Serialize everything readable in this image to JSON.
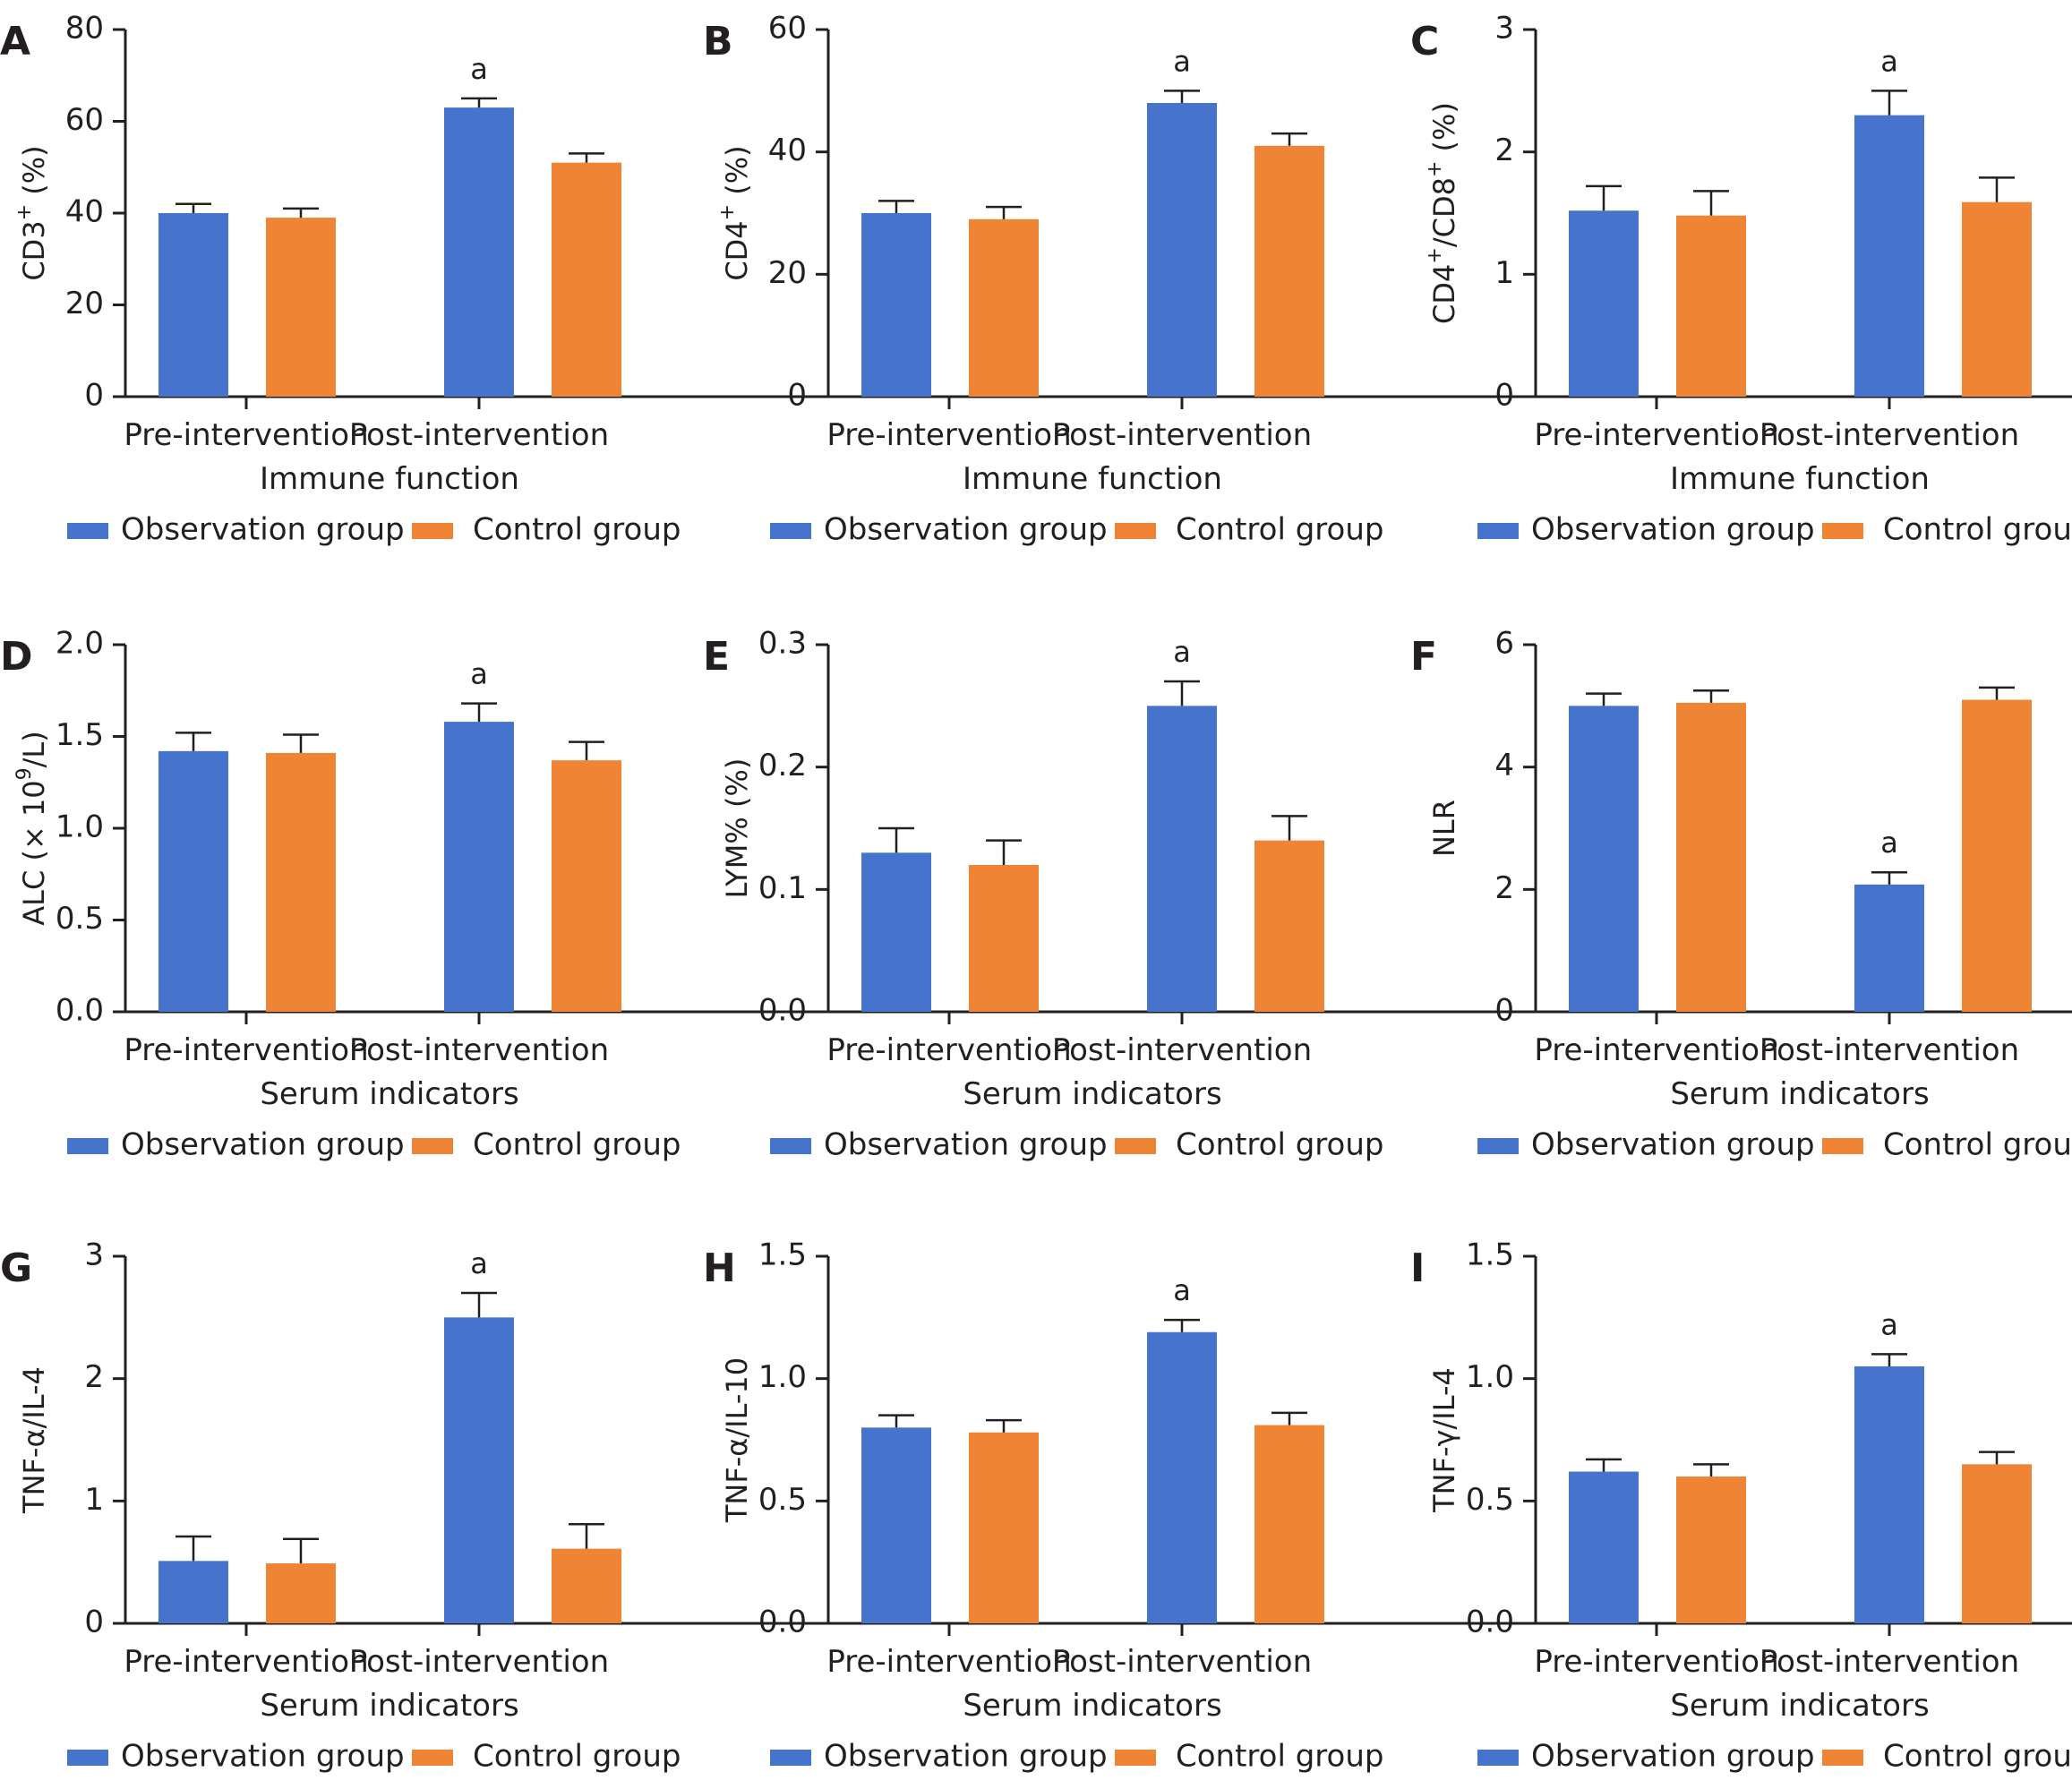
{
  "colors": {
    "observation": "#4674cc",
    "control": "#ee8434",
    "axis": "#231f20"
  },
  "legend": {
    "observation": "Observation group",
    "control": "Control group"
  },
  "chart_data": [
    {
      "panel": "A",
      "type": "bar",
      "title": "",
      "xlabel": "Immune function",
      "ylabel": {
        "pre": "CD3",
        "sup": "+",
        "post": " (%)"
      },
      "ylim": [
        0,
        80
      ],
      "yticks": [
        0,
        20,
        40,
        60,
        80
      ],
      "ytick_labels": [
        "0",
        "20",
        "40",
        "60",
        "80"
      ],
      "categories": [
        "Pre-intervention",
        "Post-intervention"
      ],
      "series": [
        {
          "name": "Observation group",
          "values": [
            40,
            63
          ],
          "errors": [
            2,
            2
          ]
        },
        {
          "name": "Control group",
          "values": [
            39,
            51
          ],
          "errors": [
            2,
            2
          ]
        }
      ],
      "annotations": [
        {
          "series": 0,
          "category": 1,
          "text": "a"
        }
      ]
    },
    {
      "panel": "B",
      "type": "bar",
      "title": "",
      "xlabel": "Immune function",
      "ylabel": {
        "pre": "CD4",
        "sup": "+",
        "post": " (%)"
      },
      "ylim": [
        0,
        60
      ],
      "yticks": [
        0,
        20,
        40,
        60
      ],
      "ytick_labels": [
        "0",
        "20",
        "40",
        "60"
      ],
      "categories": [
        "Pre-intervention",
        "Post-intervention"
      ],
      "series": [
        {
          "name": "Observation group",
          "values": [
            30,
            48
          ],
          "errors": [
            2,
            2
          ]
        },
        {
          "name": "Control group",
          "values": [
            29,
            41
          ],
          "errors": [
            2,
            2
          ]
        }
      ],
      "annotations": [
        {
          "series": 0,
          "category": 1,
          "text": "a"
        }
      ]
    },
    {
      "panel": "C",
      "type": "bar",
      "title": "",
      "xlabel": "Immune function",
      "ylabel": {
        "pre": "CD4",
        "sup": "+",
        "mid": "/CD8",
        "sup2": "+",
        "post": " (%)"
      },
      "ylim": [
        0,
        3
      ],
      "yticks": [
        0,
        1,
        2,
        3
      ],
      "ytick_labels": [
        "0",
        "1",
        "2",
        "3"
      ],
      "categories": [
        "Pre-intervention",
        "Post-intervention"
      ],
      "series": [
        {
          "name": "Observation group",
          "values": [
            1.52,
            2.3
          ],
          "errors": [
            0.2,
            0.2
          ]
        },
        {
          "name": "Control group",
          "values": [
            1.48,
            1.59
          ],
          "errors": [
            0.2,
            0.2
          ]
        }
      ],
      "annotations": [
        {
          "series": 0,
          "category": 1,
          "text": "a"
        }
      ]
    },
    {
      "panel": "D",
      "type": "bar",
      "title": "",
      "xlabel": "Serum indicators",
      "ylabel": {
        "pre": "ALC (× 10",
        "sup": "9",
        "post": "/L)"
      },
      "ylim": [
        0,
        2.0
      ],
      "yticks": [
        0,
        0.5,
        1.0,
        1.5,
        2.0
      ],
      "ytick_labels": [
        "0.0",
        "0.5",
        "1.0",
        "1.5",
        "2.0"
      ],
      "categories": [
        "Pre-intervention",
        "Post-intervention"
      ],
      "series": [
        {
          "name": "Observation group",
          "values": [
            1.42,
            1.58
          ],
          "errors": [
            0.1,
            0.1
          ]
        },
        {
          "name": "Control group",
          "values": [
            1.41,
            1.37
          ],
          "errors": [
            0.1,
            0.1
          ]
        }
      ],
      "annotations": [
        {
          "series": 0,
          "category": 1,
          "text": "a"
        }
      ]
    },
    {
      "panel": "E",
      "type": "bar",
      "title": "",
      "xlabel": "Serum indicators",
      "ylabel": {
        "pre": "LYM% (%)"
      },
      "ylim": [
        0,
        0.3
      ],
      "yticks": [
        0,
        0.1,
        0.2,
        0.3
      ],
      "ytick_labels": [
        "0.0",
        "0.1",
        "0.2",
        "0.3"
      ],
      "categories": [
        "Pre-intervention",
        "Post-intervention"
      ],
      "series": [
        {
          "name": "Observation group",
          "values": [
            0.13,
            0.25
          ],
          "errors": [
            0.02,
            0.02
          ]
        },
        {
          "name": "Control group",
          "values": [
            0.12,
            0.14
          ],
          "errors": [
            0.02,
            0.02
          ]
        }
      ],
      "annotations": [
        {
          "series": 0,
          "category": 1,
          "text": "a"
        }
      ]
    },
    {
      "panel": "F",
      "type": "bar",
      "title": "",
      "xlabel": "Serum indicators",
      "ylabel": {
        "pre": "NLR"
      },
      "ylim": [
        0,
        6
      ],
      "yticks": [
        0,
        2,
        4,
        6
      ],
      "ytick_labels": [
        "0",
        "2",
        "4",
        "6"
      ],
      "categories": [
        "Pre-intervention",
        "Post-intervention"
      ],
      "series": [
        {
          "name": "Observation group",
          "values": [
            5.0,
            2.08
          ],
          "errors": [
            0.2,
            0.2
          ]
        },
        {
          "name": "Control group",
          "values": [
            5.05,
            5.1
          ],
          "errors": [
            0.2,
            0.2
          ]
        }
      ],
      "annotations": [
        {
          "series": 0,
          "category": 1,
          "text": "a"
        }
      ]
    },
    {
      "panel": "G",
      "type": "bar",
      "title": "",
      "xlabel": "Serum indicators",
      "ylabel": {
        "pre": "TNF-α/IL-4"
      },
      "ylim": [
        0,
        3
      ],
      "yticks": [
        0,
        1,
        2,
        3
      ],
      "ytick_labels": [
        "0",
        "1",
        "2",
        "3"
      ],
      "categories": [
        "Pre-intervention",
        "Post-intervention"
      ],
      "series": [
        {
          "name": "Observation group",
          "values": [
            0.51,
            2.5
          ],
          "errors": [
            0.2,
            0.2
          ]
        },
        {
          "name": "Control group",
          "values": [
            0.49,
            0.61
          ],
          "errors": [
            0.2,
            0.2
          ]
        }
      ],
      "annotations": [
        {
          "series": 0,
          "category": 1,
          "text": "a"
        }
      ]
    },
    {
      "panel": "H",
      "type": "bar",
      "title": "",
      "xlabel": "Serum indicators",
      "ylabel": {
        "pre": "TNF-α/IL-10"
      },
      "ylim": [
        0,
        1.5
      ],
      "yticks": [
        0,
        0.5,
        1.0,
        1.5
      ],
      "ytick_labels": [
        "0.0",
        "0.5",
        "1.0",
        "1.5"
      ],
      "categories": [
        "Pre-intervention",
        "Post-intervention"
      ],
      "series": [
        {
          "name": "Observation group",
          "values": [
            0.8,
            1.19
          ],
          "errors": [
            0.05,
            0.05
          ]
        },
        {
          "name": "Control group",
          "values": [
            0.78,
            0.81
          ],
          "errors": [
            0.05,
            0.05
          ]
        }
      ],
      "annotations": [
        {
          "series": 0,
          "category": 1,
          "text": "a"
        }
      ]
    },
    {
      "panel": "I",
      "type": "bar",
      "title": "",
      "xlabel": "Serum indicators",
      "ylabel": {
        "pre": "TNF-γ/IL-4"
      },
      "ylim": [
        0,
        1.5
      ],
      "yticks": [
        0,
        0.5,
        1.0,
        1.5
      ],
      "ytick_labels": [
        "0.0",
        "0.5",
        "1.0",
        "1.5"
      ],
      "categories": [
        "Pre-intervention",
        "Post-intervention"
      ],
      "series": [
        {
          "name": "Observation group",
          "values": [
            0.62,
            1.05
          ],
          "errors": [
            0.05,
            0.05
          ]
        },
        {
          "name": "Control group",
          "values": [
            0.6,
            0.65
          ],
          "errors": [
            0.05,
            0.05
          ]
        }
      ],
      "annotations": [
        {
          "series": 0,
          "category": 1,
          "text": "a"
        }
      ]
    }
  ]
}
